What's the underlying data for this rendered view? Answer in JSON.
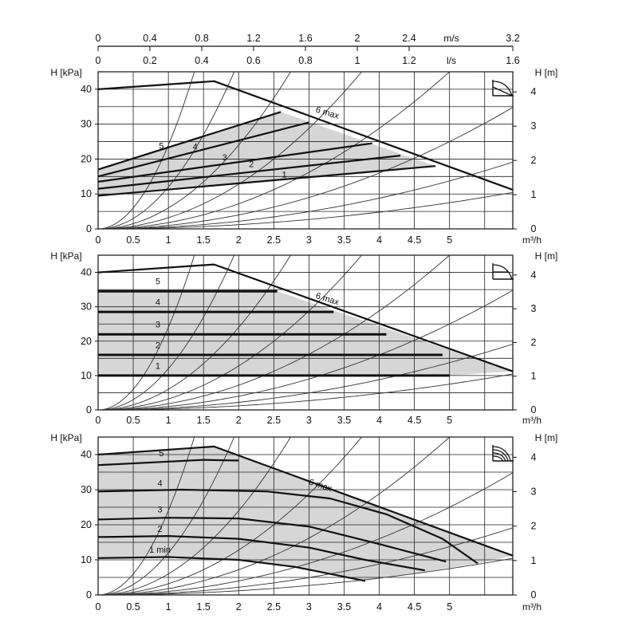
{
  "top_axis": {
    "velocity_unit": "m/s",
    "velocity_ticks": [
      "0",
      "0.4",
      "0.8",
      "1.2",
      "1.6",
      "2",
      "2.4",
      "3.2"
    ],
    "velocity_values": [
      0,
      0.4,
      0.8,
      1.2,
      1.6,
      2,
      2.4,
      3.2
    ],
    "flow_unit": "l/s",
    "flow_ticks": [
      "0",
      "0.2",
      "0.4",
      "0.6",
      "0.8",
      "1",
      "1.2",
      "1.6"
    ],
    "flow_values": [
      0,
      0.2,
      0.4,
      0.6,
      0.8,
      1,
      1.2,
      1.6
    ]
  },
  "chart_data": [
    {
      "type": "line",
      "mode": "proportional-pressure",
      "icon": "proportional-pressure-icon",
      "ylabel_left": "H [kPa]",
      "ylabel_right": "H [m]",
      "xlabel": "m³/h",
      "xlim": [
        0,
        5.9
      ],
      "ylim": [
        0,
        45
      ],
      "x_ticks": [
        "0",
        "0.5",
        "1",
        "1.5",
        "2",
        "2.5",
        "3",
        "3.5",
        "4",
        "4.5",
        "5"
      ],
      "y_ticks_left": [
        "0",
        "10",
        "20",
        "30",
        "40"
      ],
      "y_ticks_right": [
        "0",
        "1",
        "2",
        "3",
        "4"
      ],
      "grid": true,
      "series": [
        {
          "name": "6 max",
          "x": [
            0,
            1.65,
            5.9
          ],
          "y": [
            40,
            42.3,
            11.2
          ]
        },
        {
          "name": "5",
          "x": [
            0,
            2.6
          ],
          "y": [
            17,
            33.5
          ]
        },
        {
          "name": "4",
          "x": [
            0,
            3
          ],
          "y": [
            15,
            30.5
          ]
        },
        {
          "name": "3",
          "x": [
            0,
            3.9
          ],
          "y": [
            13.5,
            24.5
          ]
        },
        {
          "name": "2",
          "x": [
            0,
            4.3
          ],
          "y": [
            11.5,
            21
          ]
        },
        {
          "name": "1",
          "x": [
            0,
            4.8
          ],
          "y": [
            9.5,
            18
          ]
        }
      ],
      "labels": [
        {
          "text": "6 max",
          "x": 3.25,
          "y": 32.5,
          "rot": 17
        },
        {
          "text": "5",
          "x": 0.9,
          "y": 23,
          "rot": 0
        },
        {
          "text": "4",
          "x": 1.38,
          "y": 22.7,
          "rot": 0
        },
        {
          "text": "3",
          "x": 1.8,
          "y": 19.7,
          "rot": 0
        },
        {
          "text": "2",
          "x": 2.18,
          "y": 17.7,
          "rot": 0
        },
        {
          "text": "1",
          "x": 2.65,
          "y": 14.7,
          "rot": 0
        }
      ]
    },
    {
      "type": "line",
      "mode": "constant-pressure",
      "icon": "constant-pressure-icon",
      "ylabel_left": "H [kPa]",
      "ylabel_right": "H [m]",
      "xlabel": "m³/h",
      "xlim": [
        0,
        5.9
      ],
      "ylim": [
        0,
        45
      ],
      "x_ticks": [
        "0",
        "0.5",
        "1",
        "1.5",
        "2",
        "2.5",
        "3",
        "3.5",
        "4",
        "4.5",
        "5"
      ],
      "y_ticks_left": [
        "0",
        "10",
        "20",
        "30",
        "40"
      ],
      "y_ticks_right": [
        "0",
        "1",
        "2",
        "3",
        "4"
      ],
      "grid": true,
      "series": [
        {
          "name": "6 max",
          "x": [
            0,
            1.65,
            5.9
          ],
          "y": [
            40,
            42.3,
            11.2
          ]
        },
        {
          "name": "5",
          "x": [
            0,
            2.55
          ],
          "y": [
            34.5,
            34.5
          ]
        },
        {
          "name": "4",
          "x": [
            0,
            3.35
          ],
          "y": [
            28.5,
            28.5
          ]
        },
        {
          "name": "3",
          "x": [
            0,
            4.1
          ],
          "y": [
            22,
            22
          ]
        },
        {
          "name": "2",
          "x": [
            0,
            4.9
          ],
          "y": [
            16,
            16
          ]
        },
        {
          "name": "1",
          "x": [
            0,
            5
          ],
          "y": [
            10,
            10
          ]
        }
      ],
      "labels": [
        {
          "text": "6 max",
          "x": 3.25,
          "y": 31.5,
          "rot": 17
        },
        {
          "text": "5",
          "x": 0.85,
          "y": 36.5,
          "rot": 0
        },
        {
          "text": "4",
          "x": 0.85,
          "y": 30.5,
          "rot": 0
        },
        {
          "text": "3",
          "x": 0.85,
          "y": 24,
          "rot": 0
        },
        {
          "text": "2",
          "x": 0.85,
          "y": 18,
          "rot": 0
        },
        {
          "text": "1",
          "x": 0.85,
          "y": 12,
          "rot": 0
        }
      ]
    },
    {
      "type": "line",
      "mode": "constant-speed",
      "icon": "constant-curve-icon",
      "ylabel_left": "H [kPa]",
      "ylabel_right": "H [m]",
      "xlabel": "m³/h",
      "xlim": [
        0,
        5.9
      ],
      "ylim": [
        0,
        45
      ],
      "x_ticks": [
        "0",
        "0.5",
        "1",
        "1.5",
        "2",
        "2.5",
        "3",
        "3.5",
        "4",
        "4.5",
        "5"
      ],
      "y_ticks_left": [
        "0",
        "10",
        "20",
        "30",
        "40"
      ],
      "y_ticks_right": [
        "0",
        "1",
        "2",
        "3",
        "4"
      ],
      "grid": true,
      "series": [
        {
          "name": "6 max",
          "x": [
            0,
            1.65,
            5.9
          ],
          "y": [
            40,
            42.3,
            11.2
          ]
        },
        {
          "name": "5",
          "x": [
            0,
            0.8,
            1.5,
            2.0
          ],
          "y": [
            37,
            37.8,
            38.5,
            38.3
          ]
        },
        {
          "name": "4",
          "x": [
            0,
            1.2,
            2.4,
            3.3,
            4.1,
            4.9,
            5.4
          ],
          "y": [
            29.5,
            30,
            29.5,
            27.5,
            23,
            16,
            9
          ]
        },
        {
          "name": "3",
          "x": [
            0,
            1.0,
            2.0,
            3.0,
            4.0,
            4.95
          ],
          "y": [
            21.5,
            22,
            21.8,
            19.5,
            14.5,
            9.5
          ]
        },
        {
          "name": "2",
          "x": [
            0,
            1.0,
            2.0,
            3.0,
            3.8,
            4.65
          ],
          "y": [
            16.5,
            16.8,
            16,
            13.5,
            10,
            7
          ]
        },
        {
          "name": "1 min",
          "x": [
            0,
            1.0,
            2.0,
            2.8,
            3.8
          ],
          "y": [
            10.5,
            10.8,
            10,
            8,
            4
          ]
        }
      ],
      "labels": [
        {
          "text": "6 max",
          "x": 3.15,
          "y": 30.5,
          "rot": 18
        },
        {
          "text": "5",
          "x": 0.9,
          "y": 39.5,
          "rot": 0
        },
        {
          "text": "4",
          "x": 0.88,
          "y": 31,
          "rot": 0
        },
        {
          "text": "3",
          "x": 0.88,
          "y": 23.5,
          "rot": 0
        },
        {
          "text": "2",
          "x": 0.88,
          "y": 18,
          "rot": 0
        },
        {
          "text": "1 min",
          "x": 0.88,
          "y": 12,
          "rot": 0
        }
      ]
    }
  ],
  "colors": {
    "curve": "#111111",
    "grid": "#222222",
    "fill": "#d6d6d6",
    "system_curve": "#333333"
  }
}
